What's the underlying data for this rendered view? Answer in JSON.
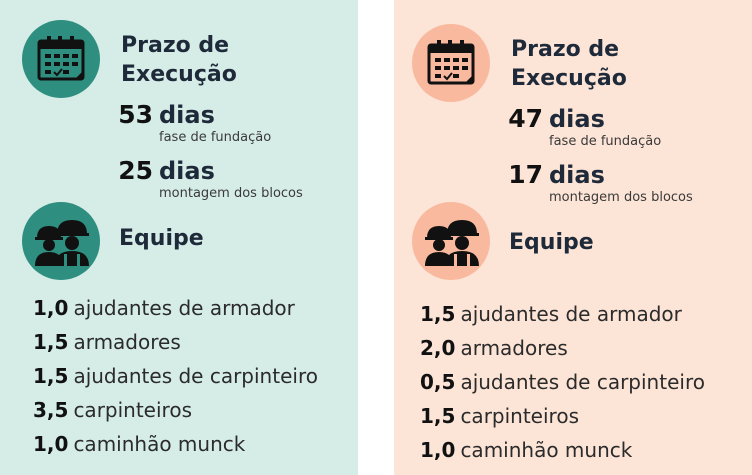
{
  "colors": {
    "left_panel_bg": "#d6ede7",
    "left_accent": "#2e8f80",
    "right_panel_bg": "#fce4d6",
    "right_accent": "#f9b99e"
  },
  "icons": {
    "schedule": "calendar-icon",
    "team": "workers-icon"
  },
  "panels": [
    {
      "schedule": {
        "title_line1": "Prazo de",
        "title_line2": "Execução",
        "metrics": [
          {
            "value": "53",
            "unit": "dias",
            "description": "fase de fundação"
          },
          {
            "value": "25",
            "unit": "dias",
            "description": "montagem dos blocos"
          }
        ]
      },
      "team": {
        "title": "Equipe",
        "items": [
          {
            "qty": "1,0",
            "label": "ajudantes de armador"
          },
          {
            "qty": "1,5",
            "label": "armadores"
          },
          {
            "qty": "1,5",
            "label": "ajudantes de carpinteiro"
          },
          {
            "qty": "3,5",
            "label": "carpinteiros"
          },
          {
            "qty": "1,0",
            "label": "caminhão munck"
          }
        ]
      }
    },
    {
      "schedule": {
        "title_line1": "Prazo de",
        "title_line2": "Execução",
        "metrics": [
          {
            "value": "47",
            "unit": "dias",
            "description": "fase de fundação"
          },
          {
            "value": "17",
            "unit": "dias",
            "description": "montagem dos blocos"
          }
        ]
      },
      "team": {
        "title": "Equipe",
        "items": [
          {
            "qty": "1,5",
            "label": "ajudantes de armador"
          },
          {
            "qty": "2,0",
            "label": "armadores"
          },
          {
            "qty": "0,5",
            "label": "ajudantes de carpinteiro"
          },
          {
            "qty": "1,5",
            "label": "carpinteiros"
          },
          {
            "qty": "1,0",
            "label": "caminhão munck"
          }
        ]
      }
    }
  ]
}
